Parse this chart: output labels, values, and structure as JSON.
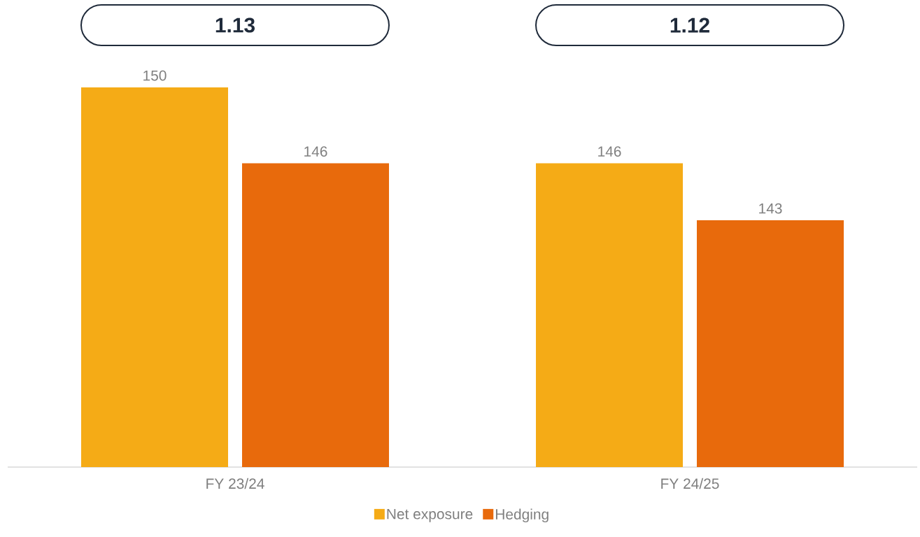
{
  "chart_data": {
    "type": "bar",
    "categories": [
      "FY 23/24",
      "FY 24/25"
    ],
    "series": [
      {
        "name": "Net exposure",
        "color": "#f5ab16",
        "values": [
          150,
          146
        ]
      },
      {
        "name": "Hedging",
        "color": "#e86a0c",
        "values": [
          146,
          143
        ]
      }
    ],
    "ylim": [
      130,
      150
    ],
    "data_labels": true,
    "legend": "bottom",
    "annotations": [
      "1.13",
      "1.12"
    ]
  }
}
